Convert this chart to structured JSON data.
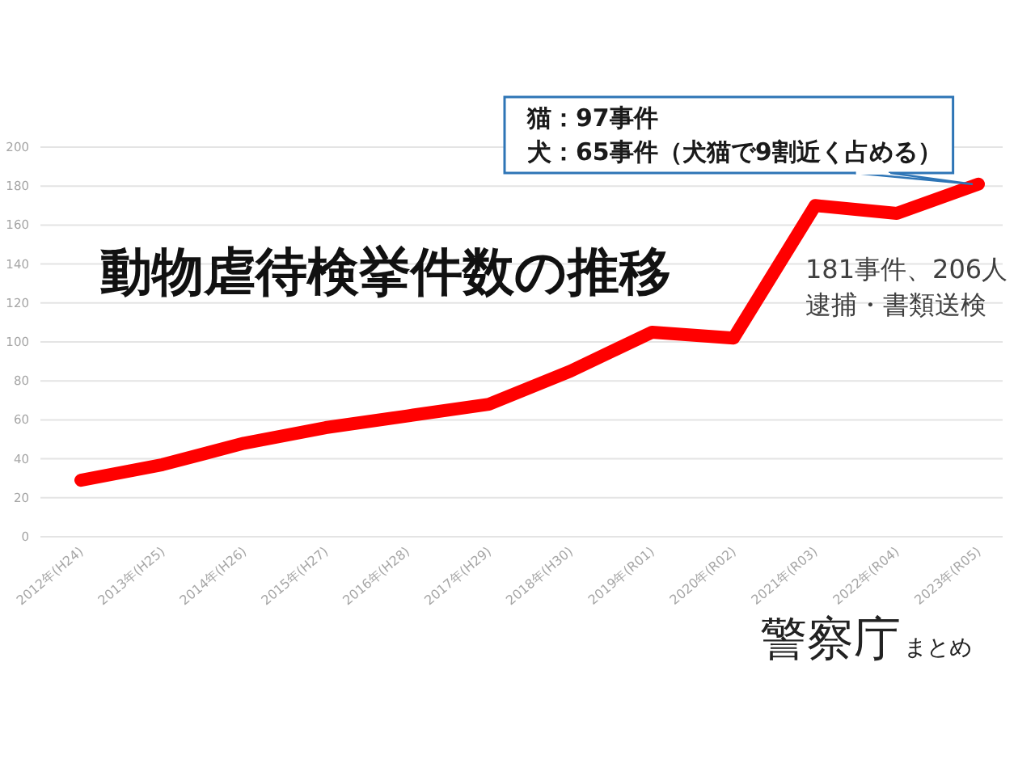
{
  "chart_data": {
    "type": "line",
    "title": "動物虐待検挙件数の推移",
    "categories": [
      "2012年(H24)",
      "2013年(H25)",
      "2014年(H26)",
      "2015年(H27)",
      "2016年(H28)",
      "2017年(H29)",
      "2018年(H30)",
      "2019年(R01)",
      "2020年(R02)",
      "2021年(R03)",
      "2022年(R04)",
      "2023年(R05)"
    ],
    "series": [
      {
        "color": "#ff0000",
        "values": [
          29,
          37,
          48,
          56,
          62,
          68,
          85,
          105,
          102,
          170,
          166,
          181
        ]
      }
    ],
    "ylim": [
      0,
      200
    ],
    "yticks": [
      0,
      20,
      40,
      60,
      80,
      100,
      120,
      140,
      160,
      180,
      200
    ],
    "grid": "y",
    "line_style": "solid",
    "annotations": [
      "猫：97事件",
      "犬：65事件（犬猫で9割近く占める）",
      "181事件、206人逮捕・書類送検",
      "警察庁",
      "まとめ"
    ]
  }
}
